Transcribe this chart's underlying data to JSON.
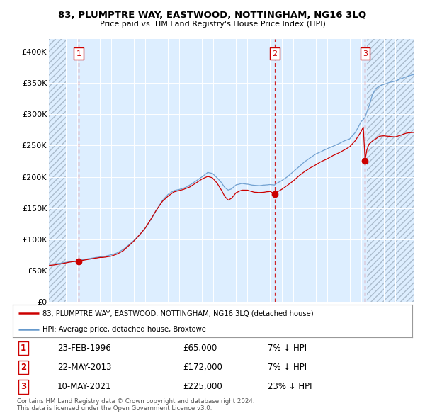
{
  "title": "83, PLUMPTRE WAY, EASTWOOD, NOTTINGHAM, NG16 3LQ",
  "subtitle": "Price paid vs. HM Land Registry's House Price Index (HPI)",
  "legend_line1": "83, PLUMPTRE WAY, EASTWOOD, NOTTINGHAM, NG16 3LQ (detached house)",
  "legend_line2": "HPI: Average price, detached house, Broxtowe",
  "transactions": [
    {
      "num": 1,
      "date": "23-FEB-1996",
      "price": 65000,
      "hpi_pct": "7% ↓ HPI",
      "year": 1996.13
    },
    {
      "num": 2,
      "date": "22-MAY-2013",
      "price": 172000,
      "hpi_pct": "7% ↓ HPI",
      "year": 2013.39
    },
    {
      "num": 3,
      "date": "10-MAY-2021",
      "price": 225000,
      "hpi_pct": "23% ↓ HPI",
      "year": 2021.36
    }
  ],
  "copyright": "Contains HM Land Registry data © Crown copyright and database right 2024.\nThis data is licensed under the Open Government Licence v3.0.",
  "red_color": "#cc0000",
  "blue_color": "#6699cc",
  "plot_bg": "#ddeeff",
  "hatch_left_end": 1995.0,
  "hatch_right_start": 2021.5,
  "xlim_start": 1993.5,
  "xlim_end": 2025.7,
  "ylim_max": 420000,
  "yticks": [
    0,
    50000,
    100000,
    150000,
    200000,
    250000,
    300000,
    350000,
    400000
  ],
  "ytick_labels": [
    "£0",
    "£50K",
    "£100K",
    "£150K",
    "£200K",
    "£250K",
    "£300K",
    "£350K",
    "£400K"
  ],
  "xticks": [
    1994,
    1995,
    1996,
    1997,
    1998,
    1999,
    2000,
    2001,
    2002,
    2003,
    2004,
    2005,
    2006,
    2007,
    2008,
    2009,
    2010,
    2011,
    2012,
    2013,
    2014,
    2015,
    2016,
    2017,
    2018,
    2019,
    2020,
    2021,
    2022,
    2023,
    2024,
    2025
  ]
}
